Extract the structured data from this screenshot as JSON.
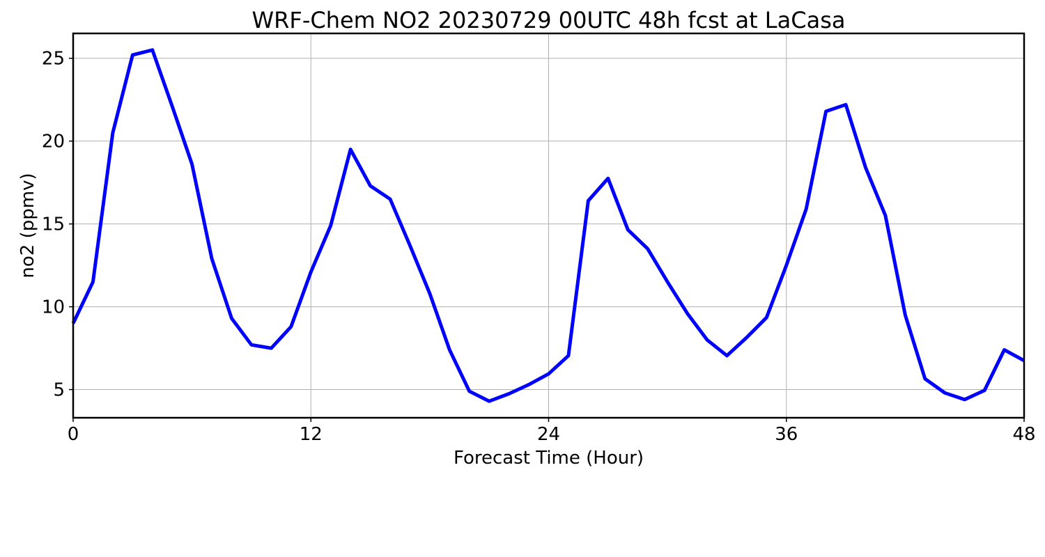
{
  "chart_data": {
    "type": "line",
    "title": "WRF-Chem NO2  20230729 00UTC 48h fcst at LaCasa",
    "xlabel": "Forecast Time (Hour)",
    "ylabel": "no2  (ppmv)",
    "xlim": [
      0,
      48
    ],
    "ylim": [
      3.3,
      26.5
    ],
    "xticks": [
      0,
      12,
      24,
      36,
      48
    ],
    "yticks": [
      5,
      10,
      15,
      20,
      25
    ],
    "grid": true,
    "series": [
      {
        "color": "#0000ff",
        "x": [
          0,
          1,
          2,
          3,
          4,
          5,
          6,
          7,
          8,
          9,
          10,
          11,
          12,
          13,
          14,
          15,
          16,
          17,
          18,
          19,
          20,
          21,
          22,
          23,
          24,
          25,
          26,
          27,
          28,
          29,
          30,
          31,
          32,
          33,
          34,
          35,
          36,
          37,
          38,
          39,
          40,
          41,
          42,
          43,
          44,
          45,
          46,
          47,
          48
        ],
        "values": [
          9.0,
          11.5,
          20.5,
          25.2,
          25.5,
          22.1,
          18.6,
          12.9,
          9.3,
          7.7,
          7.5,
          8.8,
          12.1,
          14.9,
          19.5,
          17.3,
          16.5,
          13.7,
          10.8,
          7.4,
          4.9,
          4.3,
          4.75,
          5.3,
          5.95,
          7.05,
          16.4,
          17.75,
          14.65,
          13.5,
          11.5,
          9.6,
          8.0,
          7.05,
          8.15,
          9.35,
          12.5,
          15.9,
          21.8,
          22.2,
          18.4,
          15.5,
          9.5,
          5.65,
          4.8,
          4.4,
          4.95,
          7.4,
          6.75
        ]
      }
    ]
  }
}
